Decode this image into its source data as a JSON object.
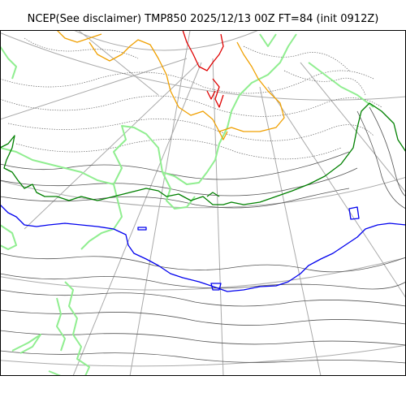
{
  "title": "NCEP(See disclaimer) TMP850 2025/12/13 00Z FT=84 (init 0912Z)",
  "colors": {
    "graticule": "#aaaaaa",
    "isotherm": "#555555",
    "isotherm_dotted": "#666666",
    "contour_red": "#e00000",
    "contour_orange": "#f0a000",
    "contour_green": "#008000",
    "contour_lightgreen": "#90ee90",
    "contour_blue": "#0000ee",
    "frame": "#000000"
  }
}
